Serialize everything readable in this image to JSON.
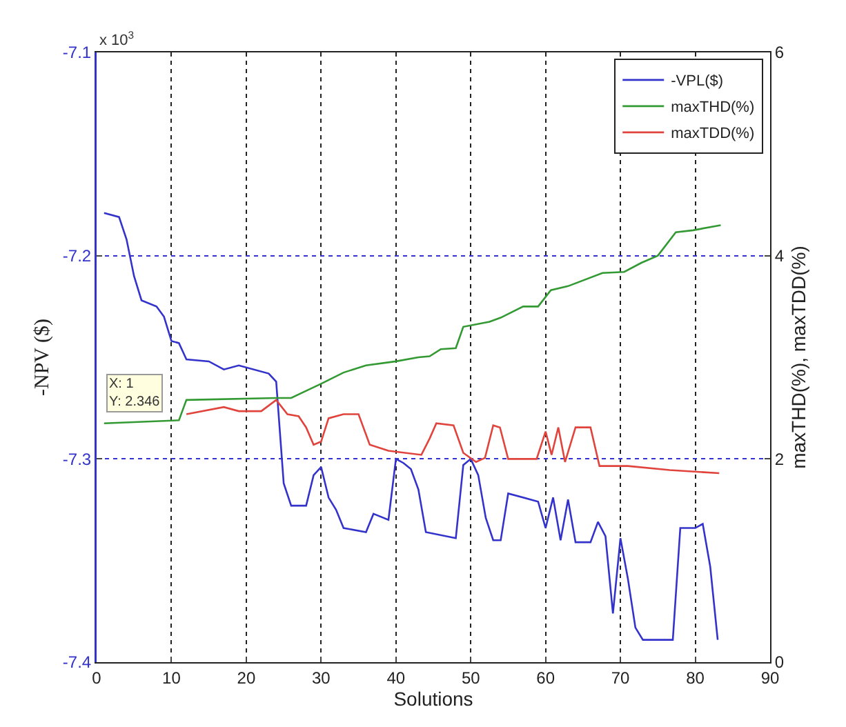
{
  "chart_data": {
    "type": "line",
    "xlabel": "Solutions",
    "ylabel": "-NPV ($)",
    "y2label": "maxTHD(%), maxTDD(%)",
    "xlim": [
      0,
      90
    ],
    "xticks": [
      0,
      10,
      20,
      30,
      40,
      50,
      60,
      70,
      80,
      90
    ],
    "ylim": [
      -7.4,
      -7.1
    ],
    "yticks": [
      -7.4,
      -7.3,
      -7.2,
      -7.1
    ],
    "y2lim": [
      0,
      6
    ],
    "y2ticks": [
      0,
      2,
      4,
      6
    ],
    "grid": true,
    "line_style": "solid",
    "legend": "top right",
    "annotations": [
      "x 10$^{3}$",
      "X: 1\nY: 2.346"
    ],
    "series": [
      {
        "name": "-VPL($)",
        "color": "#3333cc",
        "x": [
          1,
          3,
          4,
          5,
          6,
          8,
          9,
          10,
          11,
          12,
          15,
          17,
          19,
          23,
          24,
          25,
          26,
          28,
          29,
          30,
          31,
          32,
          33,
          36,
          37,
          39,
          40,
          41,
          42,
          43,
          44,
          48,
          49,
          50,
          51,
          52,
          53,
          54,
          55,
          59,
          60,
          61,
          62,
          63,
          64,
          66,
          67,
          68,
          69,
          70,
          71,
          72,
          73,
          77,
          78,
          80,
          81,
          82,
          83
        ],
        "values": [
          -7.179,
          -7.181,
          -7.192,
          -7.21,
          -7.222,
          -7.225,
          -7.23,
          -7.242,
          -7.243,
          -7.251,
          -7.252,
          -7.256,
          -7.254,
          -7.258,
          -7.262,
          -7.312,
          -7.323,
          -7.323,
          -7.308,
          -7.304,
          -7.319,
          -7.325,
          -7.334,
          -7.336,
          -7.327,
          -7.33,
          -7.3,
          -7.302,
          -7.305,
          -7.315,
          -7.336,
          -7.339,
          -7.303,
          -7.3,
          -7.308,
          -7.329,
          -7.34,
          -7.34,
          -7.317,
          -7.321,
          -7.334,
          -7.319,
          -7.34,
          -7.32,
          -7.341,
          -7.341,
          -7.331,
          -7.338,
          -7.376,
          -7.339,
          -7.359,
          -7.383,
          -7.389,
          -7.389,
          -7.334,
          -7.334,
          -7.332,
          -7.353,
          -7.389
        ]
      },
      {
        "name": "maxTHD(%)",
        "color": "#339933",
        "axis": "y2",
        "x": [
          1,
          11,
          12,
          24,
          26,
          28,
          30,
          33,
          36,
          40,
          43,
          44.5,
          46,
          48,
          49,
          52.5,
          54,
          57,
          59,
          60.7,
          63,
          67.6,
          70.5,
          72.8,
          75,
          77.4,
          79.7,
          83.4
        ],
        "values": [
          2.35,
          2.38,
          2.58,
          2.6,
          2.6,
          2.67,
          2.74,
          2.85,
          2.92,
          2.96,
          3.0,
          3.01,
          3.08,
          3.09,
          3.3,
          3.35,
          3.39,
          3.5,
          3.5,
          3.66,
          3.7,
          3.83,
          3.84,
          3.93,
          4.0,
          4.23,
          4.25,
          4.3
        ]
      },
      {
        "name": "maxTDD(%)",
        "color": "#e0443c",
        "axis": "y2",
        "x": [
          12,
          17,
          19,
          22,
          24,
          25.5,
          27,
          28,
          29,
          30,
          31,
          33,
          35,
          36.5,
          39,
          43.4,
          44.5,
          45.4,
          47.7,
          49,
          50.7,
          51.9,
          53,
          53.9,
          55,
          58.8,
          60,
          60.8,
          61.7,
          62.6,
          64,
          66,
          67.2,
          71,
          76.6,
          83.2
        ],
        "values": [
          2.44,
          2.51,
          2.47,
          2.47,
          2.58,
          2.44,
          2.42,
          2.31,
          2.14,
          2.17,
          2.4,
          2.44,
          2.44,
          2.14,
          2.08,
          2.04,
          2.2,
          2.35,
          2.33,
          2.06,
          1.97,
          2.01,
          2.33,
          2.31,
          2.0,
          2.0,
          2.27,
          2.04,
          2.31,
          1.97,
          2.31,
          2.31,
          1.93,
          1.93,
          1.89,
          1.86
        ]
      }
    ]
  }
}
